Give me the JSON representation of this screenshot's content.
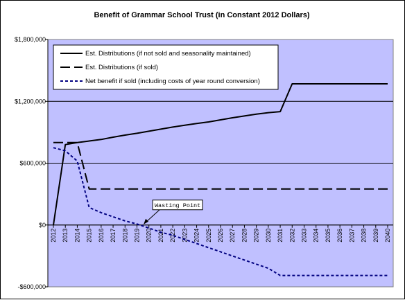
{
  "chart_data": {
    "type": "line",
    "title": "Benefit of Grammar School Trust (in Constant 2012 Dollars)",
    "xlabel": "",
    "ylabel": "",
    "x": [
      2012,
      2013,
      2014,
      2015,
      2016,
      2017,
      2018,
      2019,
      2020,
      2021,
      2022,
      2023,
      2024,
      2025,
      2026,
      2027,
      2028,
      2029,
      2030,
      2031,
      2032,
      2033,
      2034,
      2035,
      2036,
      2037,
      2038,
      2039,
      2040
    ],
    "x_tick_labels": [
      "2012",
      "2013",
      "2014",
      "2015",
      "2016",
      "2017",
      "2018",
      "2019",
      "2020",
      "2021",
      "2022",
      "2023",
      "2024",
      "2025",
      "2026",
      "2027",
      "2028",
      "2029",
      "2030",
      "2031",
      "2032",
      "2033",
      "2034",
      "2035",
      "2036",
      "2037",
      "2038",
      "2039",
      "2040"
    ],
    "ylim": [
      -600000,
      1800000
    ],
    "y_ticks": [
      -600000,
      0,
      600000,
      1200000,
      1800000
    ],
    "y_tick_labels": [
      "-$600,000",
      "$0",
      "$600,000",
      "$1,200,000",
      "$1,800,000"
    ],
    "grid": "horizontal",
    "plot_background": "#c0c0ff",
    "legend_position": "top-left",
    "series": [
      {
        "name": "Est. Distributions (if not sold and seasonality maintained)",
        "style": "solid",
        "color": "#000000",
        "values": [
          0,
          780000,
          800000,
          815000,
          830000,
          852000,
          872000,
          890000,
          910000,
          930000,
          950000,
          968000,
          985000,
          1000000,
          1020000,
          1040000,
          1058000,
          1075000,
          1090000,
          1100000,
          1370000,
          1370000,
          1370000,
          1370000,
          1370000,
          1370000,
          1370000,
          1370000,
          1370000
        ]
      },
      {
        "name": "Est. Distributions (if sold)",
        "style": "longdash",
        "color": "#000000",
        "values": [
          800000,
          800000,
          800000,
          350000,
          350000,
          350000,
          350000,
          350000,
          350000,
          350000,
          350000,
          350000,
          350000,
          350000,
          350000,
          350000,
          350000,
          350000,
          350000,
          350000,
          350000,
          350000,
          350000,
          350000,
          350000,
          350000,
          350000,
          350000,
          350000
        ]
      },
      {
        "name": "Net benefit if sold (including costs of year round conversion)",
        "style": "shortdash",
        "color": "#000080",
        "values": [
          750000,
          720000,
          620000,
          170000,
          120000,
          80000,
          40000,
          10000,
          -30000,
          -70000,
          -100000,
          -140000,
          -180000,
          -220000,
          -260000,
          -300000,
          -340000,
          -380000,
          -420000,
          -490000,
          -490000,
          -490000,
          -490000,
          -490000,
          -490000,
          -490000,
          -490000,
          -490000,
          -490000
        ]
      }
    ],
    "annotations": [
      {
        "text": "Wasting Point",
        "x": 2019.5,
        "y": 0
      }
    ]
  }
}
